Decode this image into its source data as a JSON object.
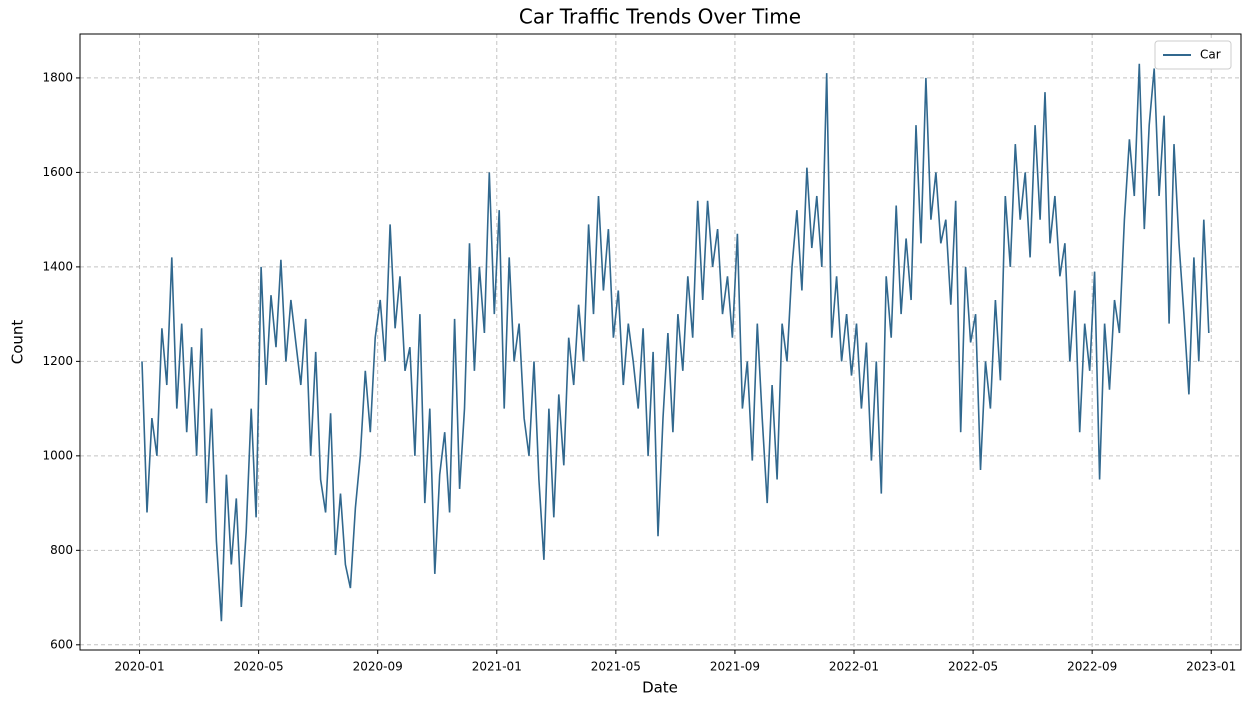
{
  "chart_data": {
    "type": "line",
    "title": "Car Traffic Trends Over Time",
    "xlabel": "Date",
    "ylabel": "Count",
    "x": [
      "2020-01",
      "2020-02",
      "2020-03",
      "2020-04",
      "2020-05",
      "2020-06",
      "2020-07",
      "2020-08",
      "2020-09",
      "2020-10",
      "2020-11",
      "2020-12",
      "2021-01",
      "2021-02",
      "2021-03",
      "2021-04",
      "2021-05",
      "2021-06",
      "2021-07",
      "2021-08",
      "2021-09",
      "2021-10",
      "2021-11",
      "2021-12",
      "2022-01",
      "2022-02",
      "2022-03",
      "2022-04",
      "2022-05",
      "2022-06",
      "2022-07",
      "2022-08",
      "2022-09",
      "2022-10",
      "2022-11",
      "2022-12"
    ],
    "series": [
      {
        "name": "Car",
        "color": "#31688e",
        "values": [
          [
            1200,
            880,
            1080,
            1000,
            1270,
            1150
          ],
          [
            1420,
            1100,
            1280,
            1050,
            1230,
            1000
          ],
          [
            1270,
            900,
            1100,
            820,
            650,
            960
          ],
          [
            770,
            910,
            680,
            840,
            1100,
            870
          ],
          [
            1400,
            1150,
            1340,
            1230,
            1415,
            1200
          ],
          [
            1330,
            1240,
            1150,
            1290,
            1000,
            1220
          ],
          [
            950,
            880,
            1090,
            790,
            920,
            770
          ],
          [
            720,
            890,
            1000,
            1180,
            1050,
            1250
          ],
          [
            1330,
            1200,
            1490,
            1270,
            1380,
            1180
          ],
          [
            1230,
            1000,
            1300,
            900,
            1100,
            750
          ],
          [
            960,
            1050,
            880,
            1290,
            930,
            1100
          ],
          [
            1450,
            1180,
            1400,
            1260,
            1600,
            1300
          ],
          [
            1520,
            1100,
            1420,
            1200,
            1280,
            1080
          ],
          [
            1000,
            1200,
            950,
            780,
            1100,
            870
          ],
          [
            1130,
            980,
            1250,
            1150,
            1320,
            1200
          ],
          [
            1490,
            1300,
            1550,
            1350,
            1480,
            1250
          ],
          [
            1350,
            1150,
            1280,
            1200,
            1100,
            1270
          ],
          [
            1000,
            1220,
            830,
            1080,
            1260,
            1050
          ],
          [
            1300,
            1180,
            1380,
            1250,
            1540,
            1330
          ],
          [
            1540,
            1400,
            1480,
            1300,
            1380,
            1250
          ],
          [
            1470,
            1100,
            1200,
            990,
            1280,
            1080
          ],
          [
            900,
            1150,
            950,
            1280,
            1200,
            1400
          ],
          [
            1520,
            1350,
            1610,
            1440,
            1550,
            1400
          ],
          [
            1810,
            1250,
            1380,
            1200,
            1300,
            1170
          ],
          [
            1280,
            1100,
            1240,
            990,
            1200,
            920
          ],
          [
            1380,
            1250,
            1530,
            1300,
            1460,
            1330
          ],
          [
            1700,
            1450,
            1800,
            1500,
            1600,
            1450
          ],
          [
            1500,
            1320,
            1540,
            1050,
            1400,
            1240
          ],
          [
            1300,
            970,
            1200,
            1100,
            1330,
            1160
          ],
          [
            1550,
            1400,
            1660,
            1500,
            1600,
            1420
          ],
          [
            1700,
            1500,
            1770,
            1450,
            1550,
            1380
          ],
          [
            1450,
            1200,
            1350,
            1050,
            1280,
            1180
          ],
          [
            1390,
            950,
            1280,
            1140,
            1330,
            1260
          ],
          [
            1500,
            1670,
            1550,
            1830,
            1480,
            1700
          ],
          [
            1820,
            1550,
            1720,
            1280,
            1660,
            1450
          ],
          [
            1300,
            1130,
            1420,
            1200,
            1500,
            1260
          ]
        ]
      }
    ],
    "xlim": [
      "2019-11",
      "2023-02"
    ],
    "xticks": [
      "2020-01",
      "2020-05",
      "2020-09",
      "2021-01",
      "2021-05",
      "2021-09",
      "2022-01",
      "2022-05",
      "2022-09",
      "2023-01"
    ],
    "ylim": [
      589,
      1893
    ],
    "yticks": [
      600,
      800,
      1000,
      1200,
      1400,
      1600,
      1800
    ],
    "grid": true,
    "legend": "upper right"
  }
}
